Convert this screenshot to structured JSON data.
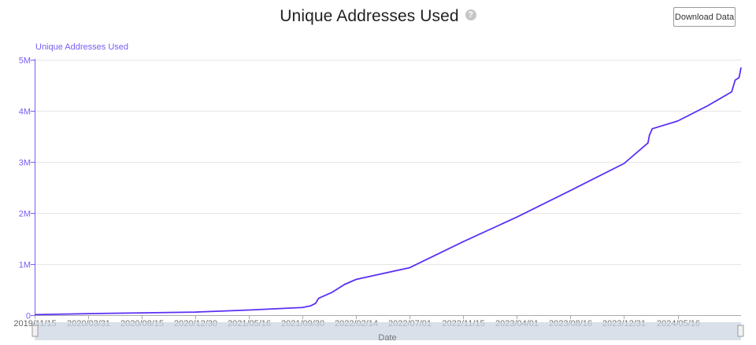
{
  "header": {
    "title": "Unique Addresses Used",
    "download_label": "Download Data"
  },
  "icons": {
    "help": "question-circle-icon"
  },
  "colors": {
    "series": "#5b2ff5",
    "axis_label": "#7b5cf5",
    "grid": "#e6e6e6",
    "navigator": "#ccd5e3"
  },
  "chart_data": {
    "type": "line",
    "ylabel": "Unique Addresses Used",
    "xlabel": "Date",
    "ylim": [
      0,
      5000000
    ],
    "y_ticks": [
      "0",
      "1M",
      "2M",
      "3M",
      "4M",
      "5M"
    ],
    "x_ticks": [
      "2019/11/15",
      "2020/03/31",
      "2020/08/15",
      "2020/12/30",
      "2021/05/16",
      "2021/09/30",
      "2022/02/14",
      "2022/07/01",
      "2022/11/15",
      "2023/04/01",
      "2023/08/16",
      "2023/12/31",
      "2024/05/16"
    ],
    "grid": true,
    "legend": "none",
    "series": [
      {
        "x": [
          "2019/11/15",
          "2020/03/31",
          "2020/08/15",
          "2020/12/30",
          "2021/05/16",
          "2021/09/30",
          "2021/10/20",
          "2021/11/02",
          "2021/11/10",
          "2021/12/15",
          "2022/01/15",
          "2022/02/14",
          "2022/07/01",
          "2022/11/15",
          "2023/04/01",
          "2023/08/16",
          "2023/12/31",
          "2024/03/01",
          "2024/03/05",
          "2024/03/12",
          "2024/05/16",
          "2024/08/01",
          "2024/10/01",
          "2024/10/10",
          "2024/10/20",
          "2024/10/25"
        ],
        "y": [
          10000,
          30000,
          45000,
          60000,
          100000,
          150000,
          180000,
          230000,
          330000,
          450000,
          600000,
          700000,
          930000,
          1440000,
          1920000,
          2440000,
          2970000,
          3370000,
          3530000,
          3650000,
          3800000,
          4100000,
          4370000,
          4600000,
          4650000,
          4850000
        ]
      }
    ]
  }
}
